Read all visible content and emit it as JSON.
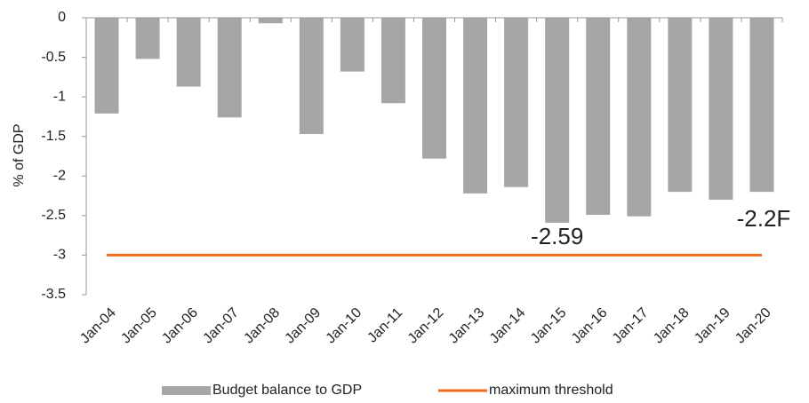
{
  "chart_data": {
    "type": "bar",
    "categories": [
      "Jan-04",
      "Jan-05",
      "Jan-06",
      "Jan-07",
      "Jan-08",
      "Jan-09",
      "Jan-10",
      "Jan-11",
      "Jan-12",
      "Jan-13",
      "Jan-14",
      "Jan-15",
      "Jan-16",
      "Jan-17",
      "Jan-18",
      "Jan-19",
      "Jan-20"
    ],
    "series": [
      {
        "name": "Budget balance to GDP",
        "type": "bar",
        "color": "#a6a6a6",
        "values": [
          -1.21,
          -0.52,
          -0.87,
          -1.26,
          -0.07,
          -1.47,
          -0.68,
          -1.08,
          -1.78,
          -2.22,
          -2.14,
          -2.59,
          -2.49,
          -2.51,
          -2.2,
          -2.3,
          -2.2
        ]
      },
      {
        "name": "maximum threshold",
        "type": "line",
        "color": "#f26b1d",
        "values": [
          -3,
          -3,
          -3,
          -3,
          -3,
          -3,
          -3,
          -3,
          -3,
          -3,
          -3,
          -3,
          -3,
          -3,
          -3,
          -3,
          -3
        ]
      }
    ],
    "y_label": "% of GDP",
    "ylim": [
      -3.5,
      0
    ],
    "yticks": [
      0,
      -0.5,
      -1,
      -1.5,
      -2,
      -2.5,
      -3,
      -3.5
    ],
    "annotations": [
      "-2.59",
      "-2.2F"
    ],
    "legend": "bottom"
  }
}
